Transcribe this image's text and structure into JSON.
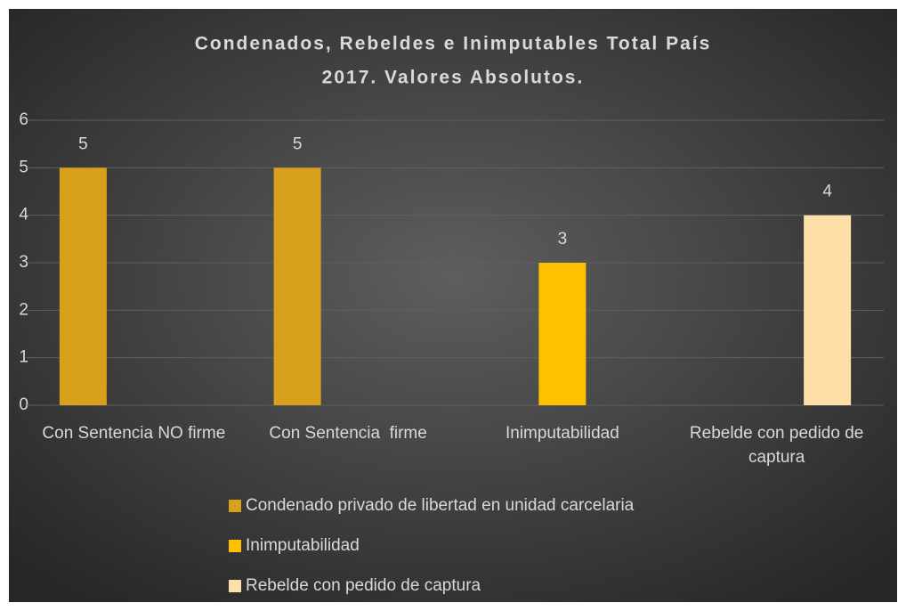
{
  "chart_data": {
    "type": "bar",
    "title": [
      "Condenados,  Rebeldes e Inimputables Total País",
      "2017. Valores Absolutos."
    ],
    "categories": [
      "Con Sentencia NO firme",
      "Con Sentencia  firme",
      "Inimputabilidad",
      "Rebelde con pedido de captura"
    ],
    "series": [
      {
        "name": "Condenado privado de libertad en unidad carcelaria",
        "color": "#d9a01c",
        "values": [
          5,
          5,
          null,
          null
        ]
      },
      {
        "name": "Inimputabilidad",
        "color": "#ffc000",
        "values": [
          null,
          null,
          3,
          null
        ]
      },
      {
        "name": "Rebelde con pedido de captura",
        "color": "#ffdfa8",
        "values": [
          null,
          null,
          null,
          4
        ]
      }
    ],
    "ylim": [
      0,
      6
    ],
    "yticks": [
      0,
      1,
      2,
      3,
      4,
      5,
      6
    ],
    "grid": true,
    "legend": "bottom"
  }
}
